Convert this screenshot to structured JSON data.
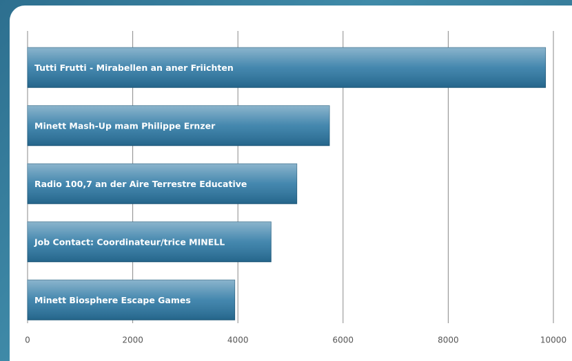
{
  "chart_data": {
    "type": "hbar",
    "categories": [
      "Tutti Frutti - Mirabellen an aner Friichten",
      "Minett Mash-Up mam Philippe Ernzer",
      "Radio 100,7 an der Aire Terrestre Educative",
      "Job Contact: Coordinateur/trice MINELL",
      "Minett Biosphere Escape Games"
    ],
    "values": [
      9850,
      5740,
      5120,
      4630,
      3940
    ],
    "color": "#2b77a3",
    "xlim": [
      0,
      10000
    ],
    "xticks": [
      0,
      2000,
      4000,
      6000,
      8000,
      10000
    ],
    "grid": true
  }
}
